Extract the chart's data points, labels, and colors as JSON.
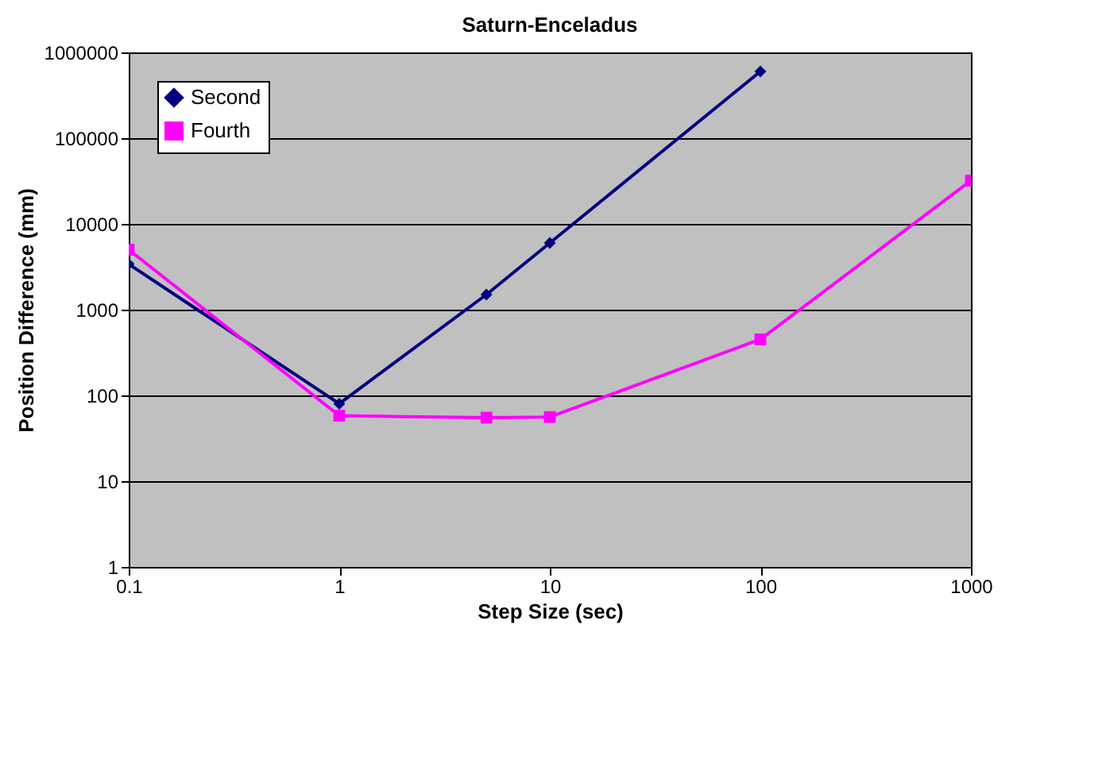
{
  "chart_data": {
    "type": "line",
    "title": "Saturn-Enceladus",
    "xlabel": "Step Size (sec)",
    "ylabel": "Position Difference (mm)",
    "x": [
      0.1,
      1,
      5,
      10,
      100,
      1000
    ],
    "series": [
      {
        "name": "Second",
        "color": "#000080",
        "marker": "diamond",
        "values": [
          3400,
          80,
          1500,
          6000,
          600000,
          null
        ]
      },
      {
        "name": "Fourth",
        "color": "#ff00ff",
        "marker": "square",
        "values": [
          5000,
          58,
          55,
          56,
          450,
          32000
        ]
      }
    ],
    "log": "xy",
    "xlim": [
      0.1,
      1000
    ],
    "ylim": [
      1,
      1000000
    ],
    "xticks": [
      0.1,
      1,
      10,
      100,
      1000
    ],
    "yticks": [
      1,
      10,
      100,
      1000,
      10000,
      100000,
      1000000
    ],
    "grid": "y",
    "legend": "top left",
    "line_style": "solid"
  }
}
